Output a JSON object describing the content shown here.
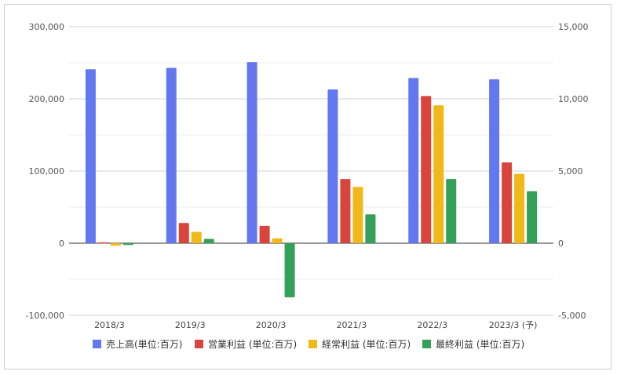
{
  "chart_data": {
    "type": "bar",
    "categories": [
      "2018/3",
      "2019/3",
      "2020/3",
      "2021/3",
      "2022/3",
      "2023/3 (予)"
    ],
    "left_axis": {
      "ylim": [
        -100000,
        300000
      ],
      "ticks": [
        -100000,
        0,
        100000,
        200000,
        300000
      ],
      "tick_labels": [
        "-100,000",
        "0",
        "100,000",
        "200,000",
        "300,000"
      ]
    },
    "right_axis": {
      "ylim": [
        -5000,
        15000
      ],
      "ticks": [
        -5000,
        0,
        5000,
        10000,
        15000
      ],
      "tick_labels": [
        "-5,000",
        "0",
        "5,000",
        "10,000",
        "15,000"
      ]
    },
    "series": [
      {
        "name": "売上高(単位:百万)",
        "axis": "left",
        "color": "#6378f0",
        "values": [
          241000,
          243000,
          251000,
          213000,
          229000,
          227000
        ]
      },
      {
        "name": "営業利益 (単位:百万)",
        "axis": "right",
        "color": "#d9453d",
        "values": [
          60,
          1400,
          1200,
          4450,
          10200,
          5600
        ]
      },
      {
        "name": "経常利益 (単位:百万)",
        "axis": "right",
        "color": "#f0b919",
        "values": [
          -170,
          780,
          340,
          3900,
          9550,
          4800
        ]
      },
      {
        "name": "最終利益 (単位:百万)",
        "axis": "right",
        "color": "#34a05a",
        "values": [
          -120,
          300,
          -3750,
          2000,
          4450,
          3600
        ]
      }
    ],
    "grid": true,
    "legend": "bottom"
  }
}
